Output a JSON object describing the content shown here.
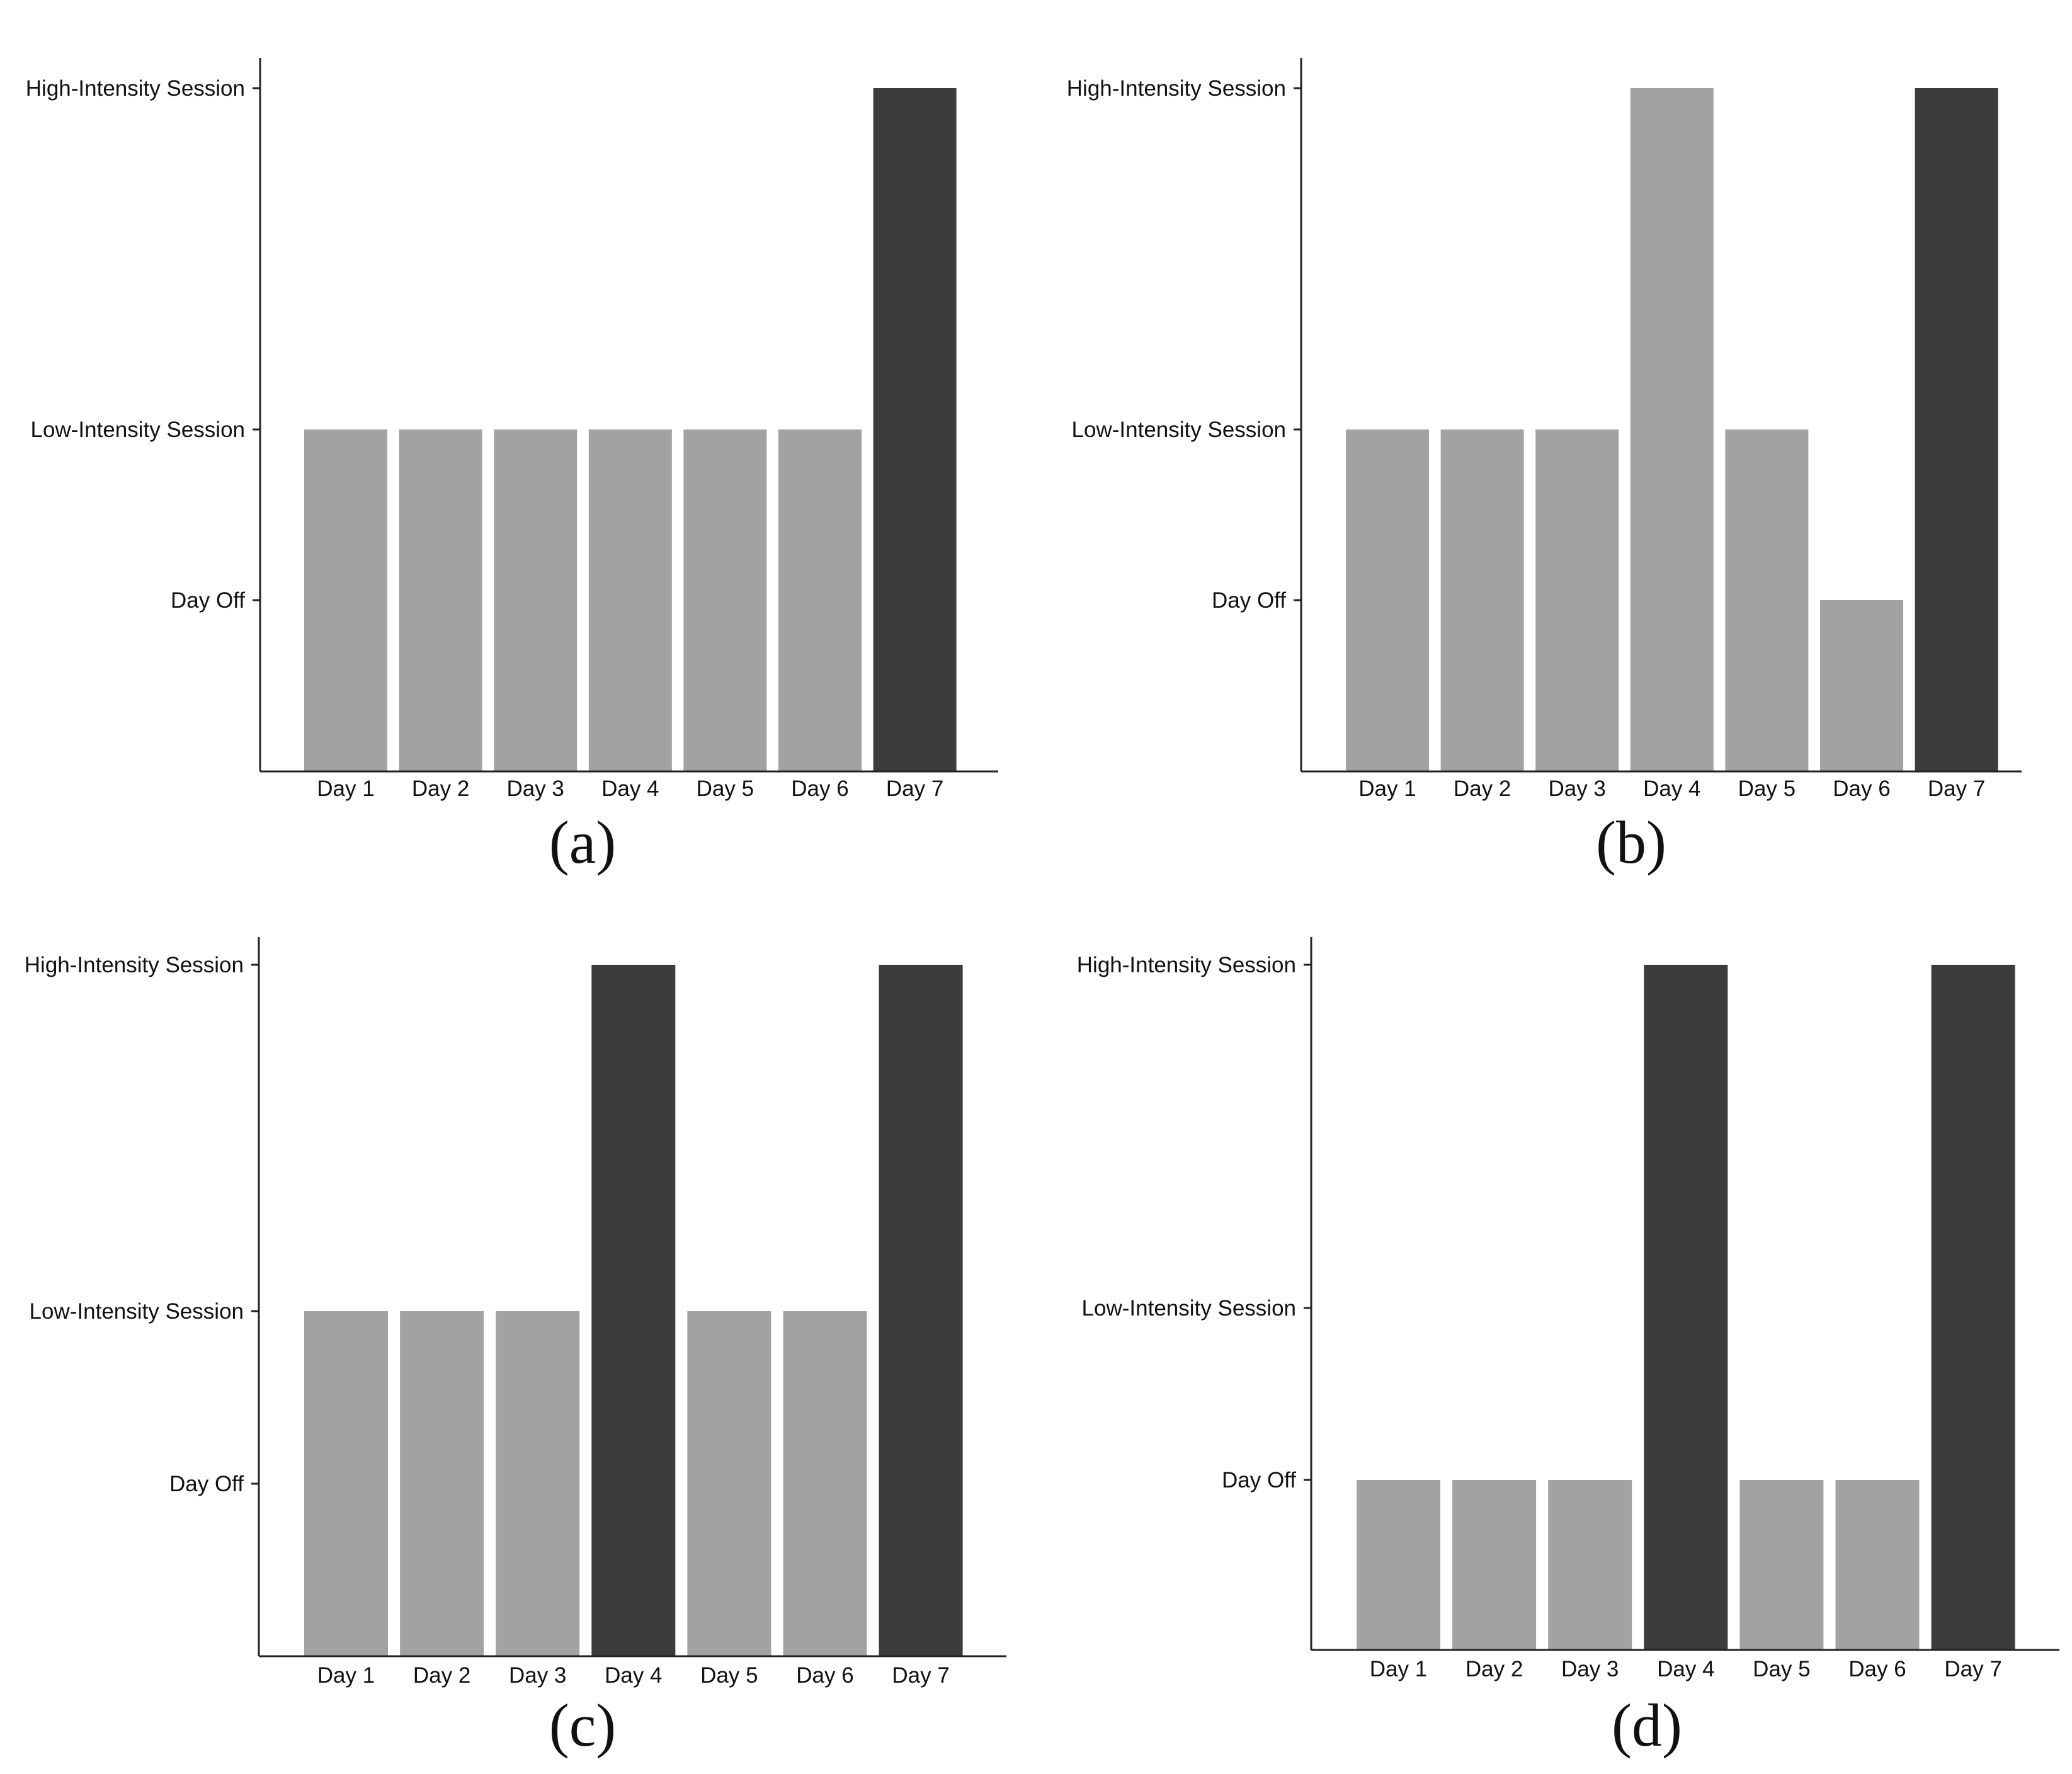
{
  "colors": {
    "regular": "#a2a2a2",
    "emphasis": "#3c3c3c",
    "axis": "#222222",
    "background": "#ffffff"
  },
  "chart_data": [
    {
      "type": "bar",
      "panel_label": "(a)",
      "y_levels": [
        "Day Off",
        "Low-Intensity Session",
        "High-Intensity Session"
      ],
      "categories": [
        "Day 1",
        "Day 2",
        "Day 3",
        "Day 4",
        "Day 5",
        "Day 6",
        "Day 7"
      ],
      "values": [
        "Low-Intensity Session",
        "Low-Intensity Session",
        "Low-Intensity Session",
        "Low-Intensity Session",
        "Low-Intensity Session",
        "Low-Intensity Session",
        "High-Intensity Session"
      ],
      "bar_shades": [
        "regular",
        "regular",
        "regular",
        "regular",
        "regular",
        "regular",
        "emphasis"
      ],
      "grid": false
    },
    {
      "type": "bar",
      "panel_label": "(b)",
      "y_levels": [
        "Day Off",
        "Low-Intensity Session",
        "High-Intensity Session"
      ],
      "categories": [
        "Day 1",
        "Day 2",
        "Day 3",
        "Day 4",
        "Day 5",
        "Day 6",
        "Day 7"
      ],
      "values": [
        "Low-Intensity Session",
        "Low-Intensity Session",
        "Low-Intensity Session",
        "High-Intensity Session",
        "Low-Intensity Session",
        "Day Off",
        "High-Intensity Session"
      ],
      "bar_shades": [
        "regular",
        "regular",
        "regular",
        "regular",
        "regular",
        "regular",
        "emphasis"
      ],
      "grid": false
    },
    {
      "type": "bar",
      "panel_label": "(c)",
      "y_levels": [
        "Day Off",
        "Low-Intensity Session",
        "High-Intensity Session"
      ],
      "categories": [
        "Day 1",
        "Day 2",
        "Day 3",
        "Day 4",
        "Day 5",
        "Day 6",
        "Day 7"
      ],
      "values": [
        "Low-Intensity Session",
        "Low-Intensity Session",
        "Low-Intensity Session",
        "High-Intensity Session",
        "Low-Intensity Session",
        "Low-Intensity Session",
        "High-Intensity Session"
      ],
      "bar_shades": [
        "regular",
        "regular",
        "regular",
        "emphasis",
        "regular",
        "regular",
        "emphasis"
      ],
      "grid": false
    },
    {
      "type": "bar",
      "panel_label": "(d)",
      "y_levels": [
        "Day Off",
        "Low-Intensity Session",
        "High-Intensity Session"
      ],
      "categories": [
        "Day 1",
        "Day 2",
        "Day 3",
        "Day 4",
        "Day 5",
        "Day 6",
        "Day 7"
      ],
      "values": [
        "Day Off",
        "Day Off",
        "Day Off",
        "High-Intensity Session",
        "Day Off",
        "Day Off",
        "High-Intensity Session"
      ],
      "bar_shades": [
        "regular",
        "regular",
        "regular",
        "emphasis",
        "regular",
        "regular",
        "emphasis"
      ],
      "grid": false
    }
  ]
}
